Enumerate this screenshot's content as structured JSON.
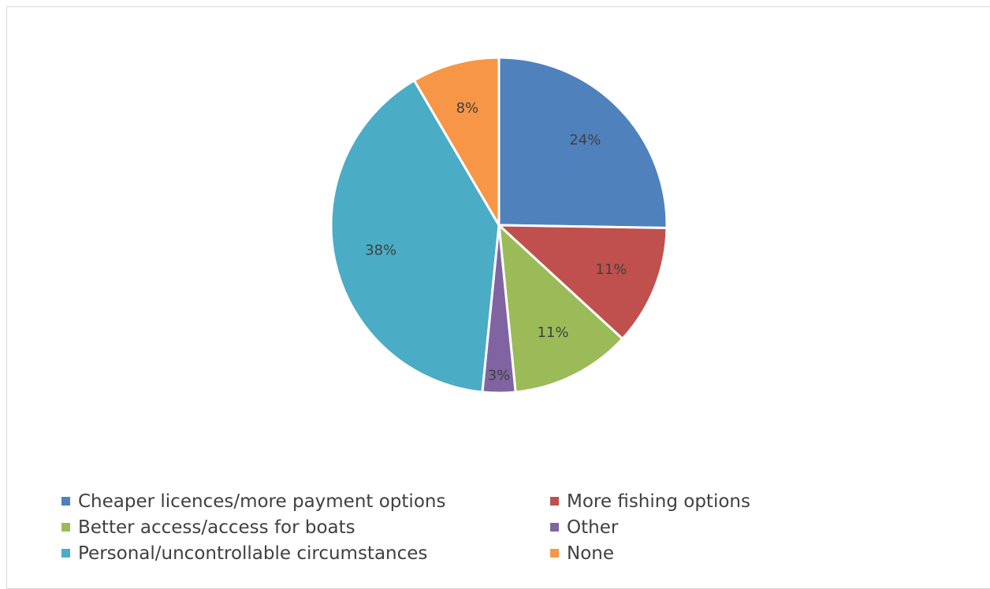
{
  "chart_data": {
    "type": "pie",
    "title": "",
    "slices": [
      {
        "name": "Cheaper licences/more payment options",
        "value": 24,
        "label": "24%",
        "color": "#4F81BD"
      },
      {
        "name": "More fishing options",
        "value": 11,
        "label": "11%",
        "color": "#C0504D"
      },
      {
        "name": "Better access/access for boats",
        "value": 11,
        "label": "11%",
        "color": "#9BBB59"
      },
      {
        "name": "Other",
        "value": 3,
        "label": "3%",
        "color": "#8064A2"
      },
      {
        "name": "Personal/uncontrollable circumstances",
        "value": 38,
        "label": "38%",
        "color": "#4BACC6"
      },
      {
        "name": "None",
        "value": 8,
        "label": "8%",
        "color": "#F79646"
      }
    ],
    "legend_position": "bottom",
    "legend": [
      {
        "label": "Cheaper licences/more payment options",
        "color": "#4F81BD"
      },
      {
        "label": "More fishing options",
        "color": "#C0504D"
      },
      {
        "label": "Better access/access for boats",
        "color": "#9BBB59"
      },
      {
        "label": "Other",
        "color": "#8064A2"
      },
      {
        "label": "Personal/uncontrollable circumstances",
        "color": "#4BACC6"
      },
      {
        "label": "None",
        "color": "#F79646"
      }
    ]
  }
}
